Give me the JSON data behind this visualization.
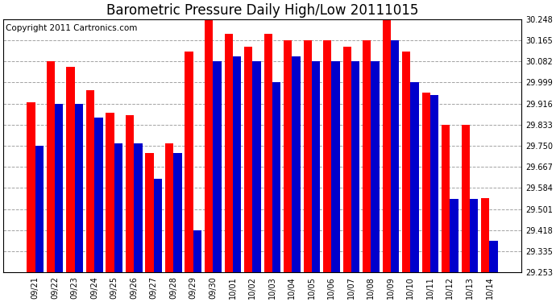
{
  "title": "Barometric Pressure Daily High/Low 20111015",
  "copyright": "Copyright 2011 Cartronics.com",
  "dates": [
    "09/21",
    "09/22",
    "09/23",
    "09/24",
    "09/25",
    "09/26",
    "09/27",
    "09/28",
    "09/29",
    "09/30",
    "10/01",
    "10/02",
    "10/03",
    "10/04",
    "10/05",
    "10/06",
    "10/07",
    "10/08",
    "10/09",
    "10/10",
    "10/11",
    "10/12",
    "10/13",
    "10/14"
  ],
  "highs": [
    29.92,
    30.082,
    30.06,
    29.97,
    29.88,
    29.87,
    29.72,
    29.76,
    30.12,
    30.248,
    30.19,
    30.14,
    30.19,
    30.165,
    30.165,
    30.165,
    30.14,
    30.165,
    30.248,
    30.12,
    29.96,
    29.833,
    29.833,
    29.545
  ],
  "lows": [
    29.75,
    29.916,
    29.916,
    29.86,
    29.76,
    29.76,
    29.62,
    29.72,
    29.418,
    30.082,
    30.1,
    30.082,
    30.0,
    30.1,
    30.082,
    30.082,
    30.082,
    30.082,
    30.165,
    30.0,
    29.95,
    29.54,
    29.54,
    29.375
  ],
  "ymin": 29.253,
  "ymax": 30.248,
  "yticks": [
    29.253,
    29.335,
    29.418,
    29.501,
    29.584,
    29.667,
    29.75,
    29.833,
    29.916,
    29.999,
    30.082,
    30.165,
    30.248
  ],
  "high_color": "#ff0000",
  "low_color": "#0000cc",
  "bg_color": "#ffffff",
  "grid_color": "#999999",
  "title_fontsize": 12,
  "copyright_fontsize": 7.5
}
